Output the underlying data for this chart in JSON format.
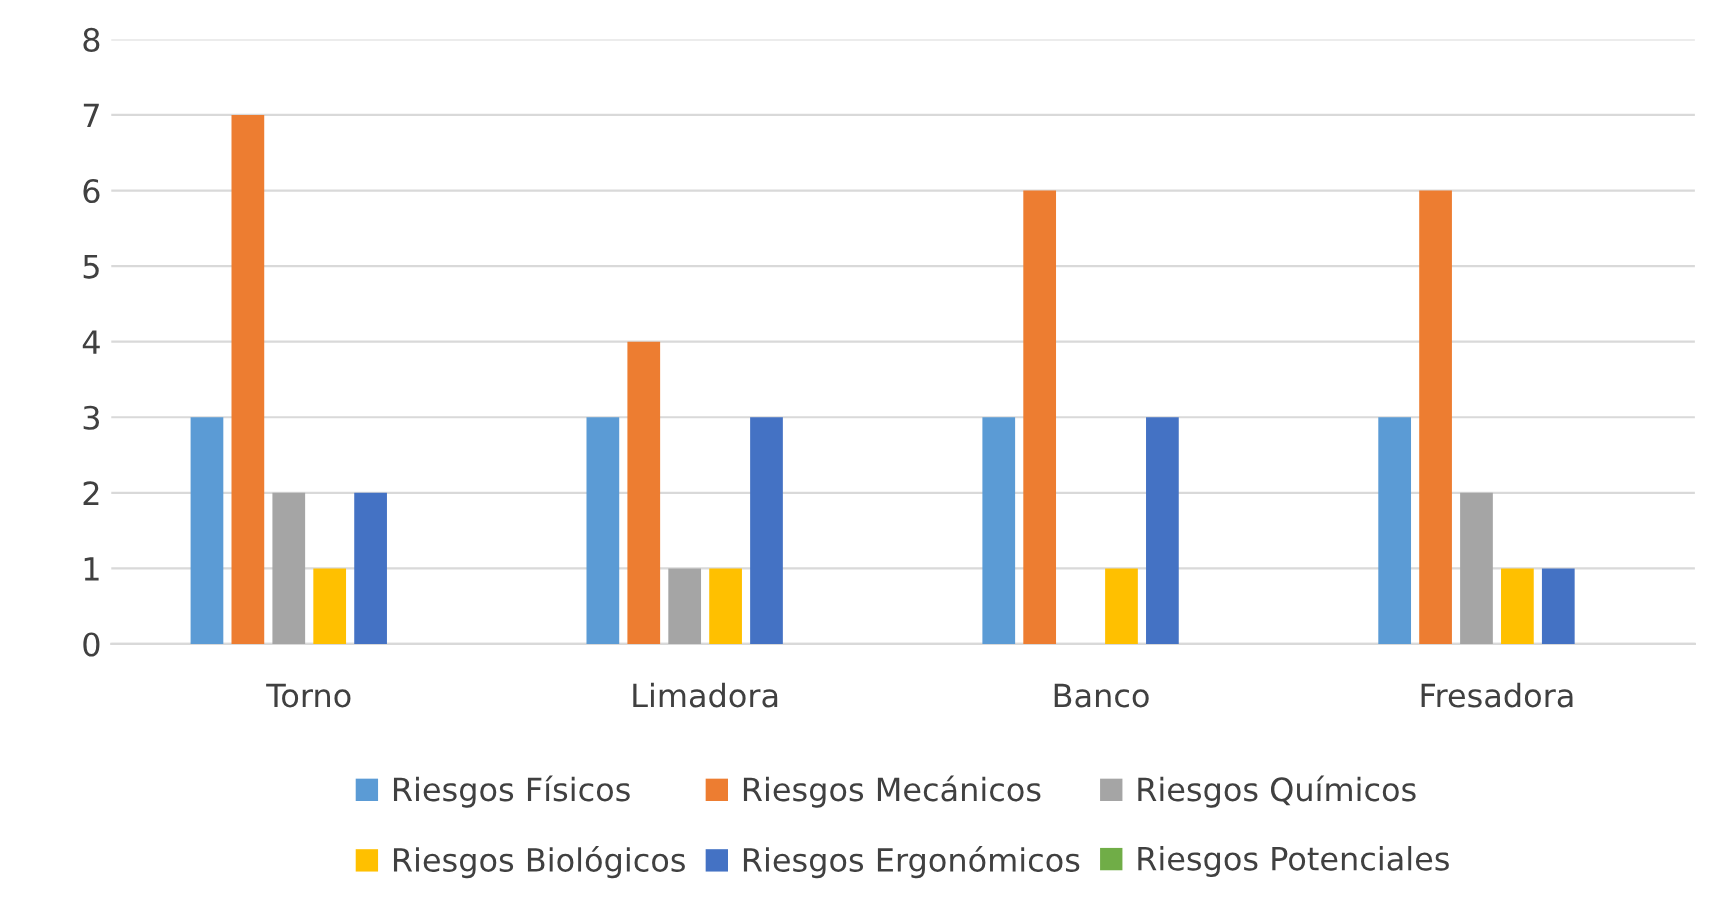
{
  "chart_data": {
    "type": "bar",
    "categories": [
      "Torno",
      "Limadora",
      "Banco",
      "Fresadora"
    ],
    "series": [
      {
        "name": "Riesgos Físicos",
        "color": "#5b9bd5",
        "values": [
          3,
          3,
          3,
          3
        ]
      },
      {
        "name": "Riesgos Mecánicos",
        "color": "#ed7d31",
        "values": [
          7,
          4,
          6,
          6
        ]
      },
      {
        "name": "Riesgos Químicos",
        "color": "#a5a5a5",
        "values": [
          2,
          1,
          0,
          2
        ]
      },
      {
        "name": "Riesgos Biológicos",
        "color": "#ffc000",
        "values": [
          1,
          1,
          1,
          1
        ]
      },
      {
        "name": "Riesgos Ergonómicos",
        "color": "#4472c4",
        "values": [
          2,
          3,
          3,
          1
        ]
      },
      {
        "name": "Riesgos Potenciales",
        "color": "#70ad47",
        "values": [
          0,
          0,
          0,
          0
        ]
      }
    ],
    "ylim": [
      0,
      8
    ],
    "yticks": [
      0,
      1,
      2,
      3,
      4,
      5,
      6,
      7,
      8
    ],
    "grid": "y",
    "legend": "bottom"
  }
}
